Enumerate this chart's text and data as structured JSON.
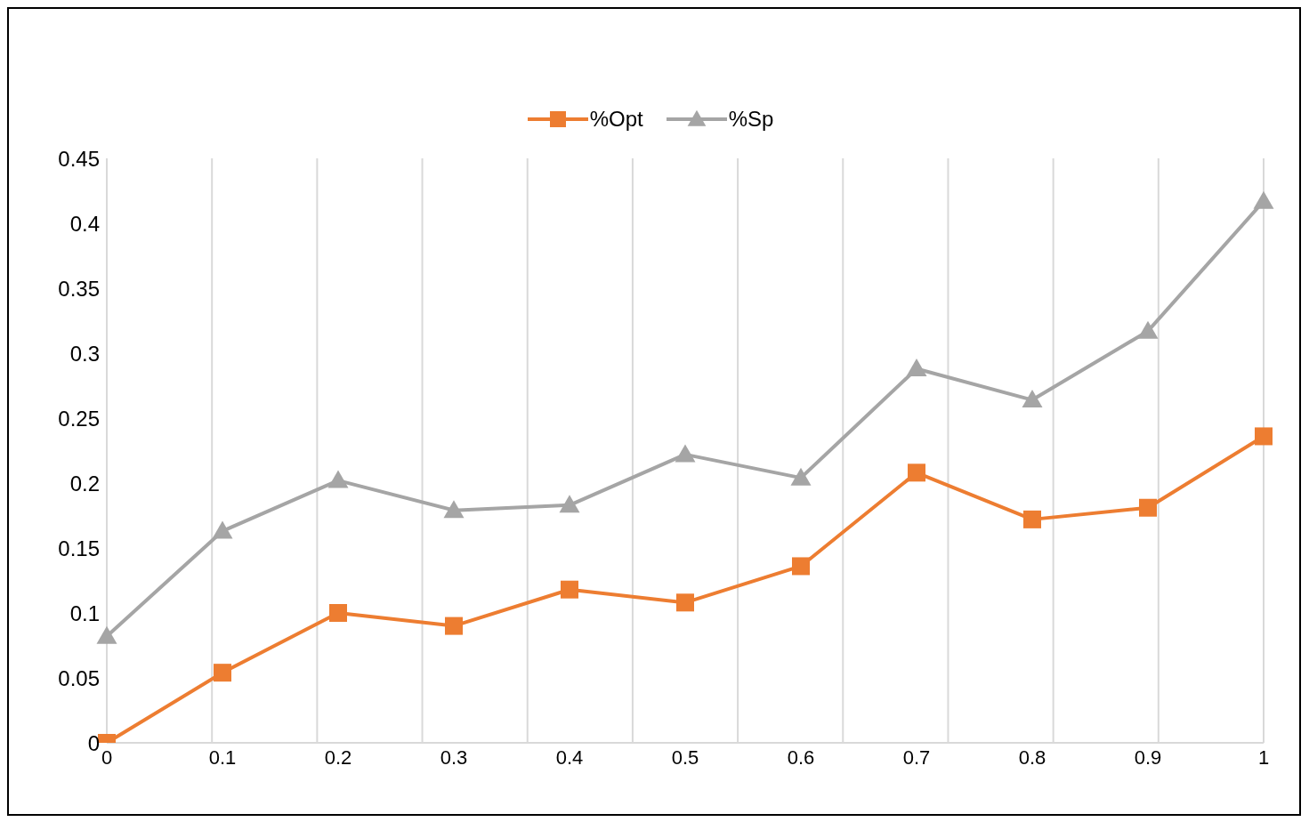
{
  "chart_data": {
    "type": "line",
    "categories": [
      "0",
      "0.1",
      "0.2",
      "0.3",
      "0.4",
      "0.5",
      "0.6",
      "0.7",
      "0.8",
      "0.9",
      "1"
    ],
    "series": [
      {
        "name": "%Opt",
        "color": "#ed7d31",
        "marker": "square",
        "values": [
          0,
          0.054,
          0.1,
          0.09,
          0.118,
          0.108,
          0.136,
          0.208,
          0.172,
          0.181,
          0.236
        ]
      },
      {
        "name": "%Sp",
        "color": "#a5a5a5",
        "marker": "triangle",
        "values": [
          0.082,
          0.163,
          0.202,
          0.179,
          0.183,
          0.222,
          0.204,
          0.288,
          0.264,
          0.317,
          0.417
        ]
      }
    ],
    "ylim": [
      0,
      0.45
    ],
    "yticks": [
      0,
      0.05,
      0.1,
      0.15,
      0.2,
      0.25,
      0.3,
      0.35,
      0.4,
      0.45
    ],
    "grid": "x",
    "legend": "top",
    "line_style": "solid"
  }
}
